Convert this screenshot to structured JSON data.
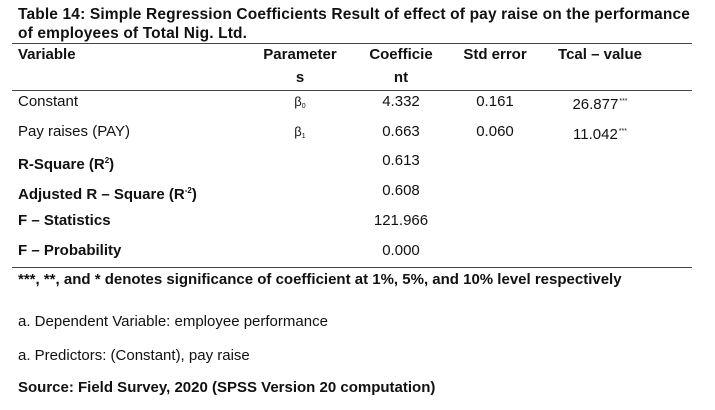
{
  "title": "Table 14: Simple Regression Coefficients Result of effect of pay raise on the performance of employees of Total Nig. Ltd.",
  "headers": {
    "variable": "Variable",
    "parameters_line1": "Parameter",
    "parameters_line2": "s",
    "coefficient_line1": "Coefficie",
    "coefficient_line2": "nt",
    "std_error": "Std error",
    "tcal": "Tcal – value"
  },
  "rows": [
    {
      "variable": "Constant",
      "param_symbol": "β",
      "param_index": "0",
      "coefficient": "4.332",
      "std_error": "0.161",
      "tcal": "26.877",
      "tcal_sig": "***"
    },
    {
      "variable": "Pay raises (PAY)",
      "param_symbol": "β",
      "param_index": "1",
      "coefficient": "0.663",
      "std_error": "0.060",
      "tcal": "11.042",
      "tcal_sig": "***"
    }
  ],
  "stats": [
    {
      "label_pre": "R-Square (R",
      "label_sup": "2",
      "label_post": ")",
      "value": "0.613"
    },
    {
      "label_pre": "Adjusted R – Square (R",
      "label_sup": "-2",
      "label_post": ")",
      "value": "0.608"
    },
    {
      "label_pre": "F – Statistics",
      "label_sup": "",
      "label_post": "",
      "value": "121.966"
    },
    {
      "label_pre": "F – Probability",
      "label_sup": "",
      "label_post": "",
      "value": "0.000"
    }
  ],
  "notes": {
    "significance": "***, **, and * denotes significance of coefficient at 1%, 5%, and 10% level respectively",
    "dependent": "a. Dependent Variable: employee performance",
    "predictors": "a. Predictors: (Constant), pay raise",
    "source": "Source: Field Survey, 2020 (SPSS Version 20 computation)"
  }
}
